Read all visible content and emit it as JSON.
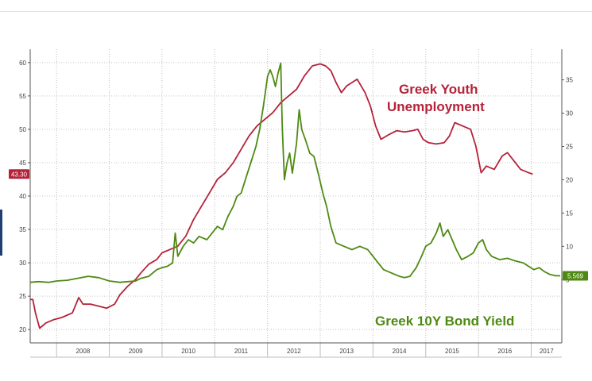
{
  "chart_data": {
    "type": "line",
    "title": "",
    "xlabel": "",
    "ylabel": "",
    "x_tick_labels": [
      "2008",
      "2009",
      "2010",
      "2011",
      "2012",
      "2013",
      "2014",
      "2015",
      "2016",
      "2017"
    ],
    "x_range": [
      2007.5,
      2017.58
    ],
    "y_left": {
      "range": [
        18,
        62
      ],
      "ticks": [
        20,
        25,
        30,
        35,
        40,
        45,
        50,
        55,
        60
      ]
    },
    "y_right": {
      "range": [
        -4.5,
        39.6
      ],
      "ticks": [
        5,
        10,
        15,
        20,
        25,
        30,
        35
      ]
    },
    "grid": true,
    "series": [
      {
        "name": "Greek Youth Unemployment",
        "axis": "left",
        "color": "#b5223a",
        "last_value_label": "43.30",
        "points": [
          [
            2007.5,
            24.5
          ],
          [
            2007.55,
            24.5
          ],
          [
            2007.6,
            22.5
          ],
          [
            2007.68,
            20.2
          ],
          [
            2007.8,
            21
          ],
          [
            2007.95,
            21.5
          ],
          [
            2008.1,
            21.8
          ],
          [
            2008.3,
            22.5
          ],
          [
            2008.42,
            24.8
          ],
          [
            2008.5,
            23.8
          ],
          [
            2008.65,
            23.8
          ],
          [
            2008.8,
            23.5
          ],
          [
            2008.95,
            23.2
          ],
          [
            2009.1,
            23.8
          ],
          [
            2009.2,
            25.2
          ],
          [
            2009.35,
            26.5
          ],
          [
            2009.5,
            27.5
          ],
          [
            2009.6,
            28.5
          ],
          [
            2009.75,
            29.8
          ],
          [
            2009.9,
            30.5
          ],
          [
            2010.0,
            31.5
          ],
          [
            2010.15,
            32.0
          ],
          [
            2010.3,
            32.5
          ],
          [
            2010.45,
            34.0
          ],
          [
            2010.6,
            36.5
          ],
          [
            2010.75,
            38.5
          ],
          [
            2010.9,
            40.5
          ],
          [
            2011.05,
            42.5
          ],
          [
            2011.2,
            43.5
          ],
          [
            2011.35,
            45.0
          ],
          [
            2011.5,
            47.0
          ],
          [
            2011.65,
            49.0
          ],
          [
            2011.8,
            50.5
          ],
          [
            2011.95,
            51.5
          ],
          [
            2012.1,
            52.5
          ],
          [
            2012.25,
            54.0
          ],
          [
            2012.4,
            55.0
          ],
          [
            2012.55,
            56.0
          ],
          [
            2012.7,
            58.0
          ],
          [
            2012.85,
            59.5
          ],
          [
            2013.0,
            59.8
          ],
          [
            2013.1,
            59.5
          ],
          [
            2013.2,
            58.8
          ],
          [
            2013.3,
            57.0
          ],
          [
            2013.4,
            55.5
          ],
          [
            2013.5,
            56.5
          ],
          [
            2013.6,
            57.0
          ],
          [
            2013.7,
            57.5
          ],
          [
            2013.85,
            55.5
          ],
          [
            2013.95,
            53.5
          ],
          [
            2014.05,
            50.5
          ],
          [
            2014.15,
            48.5
          ],
          [
            2014.3,
            49.2
          ],
          [
            2014.45,
            49.8
          ],
          [
            2014.6,
            49.6
          ],
          [
            2014.75,
            49.8
          ],
          [
            2014.85,
            50.0
          ],
          [
            2014.95,
            48.5
          ],
          [
            2015.05,
            48.0
          ],
          [
            2015.2,
            47.8
          ],
          [
            2015.35,
            48.0
          ],
          [
            2015.45,
            49.0
          ],
          [
            2015.55,
            51.0
          ],
          [
            2015.7,
            50.5
          ],
          [
            2015.85,
            50.0
          ],
          [
            2015.95,
            47.5
          ],
          [
            2016.05,
            43.5
          ],
          [
            2016.15,
            44.5
          ],
          [
            2016.3,
            44.0
          ],
          [
            2016.45,
            46.0
          ],
          [
            2016.55,
            46.5
          ],
          [
            2016.65,
            45.5
          ],
          [
            2016.8,
            44.0
          ],
          [
            2016.95,
            43.5
          ],
          [
            2017.03,
            43.3
          ]
        ]
      },
      {
        "name": "Greek 10Y Bond Yield",
        "axis": "right",
        "color": "#4e8a12",
        "last_value_label": "5.569",
        "points": [
          [
            2007.5,
            4.6
          ],
          [
            2007.65,
            4.7
          ],
          [
            2007.85,
            4.6
          ],
          [
            2008.0,
            4.8
          ],
          [
            2008.2,
            4.9
          ],
          [
            2008.4,
            5.2
          ],
          [
            2008.6,
            5.5
          ],
          [
            2008.8,
            5.3
          ],
          [
            2009.0,
            4.8
          ],
          [
            2009.2,
            4.6
          ],
          [
            2009.35,
            4.7
          ],
          [
            2009.5,
            4.8
          ],
          [
            2009.6,
            5.2
          ],
          [
            2009.75,
            5.5
          ],
          [
            2009.9,
            6.5
          ],
          [
            2010.0,
            6.8
          ],
          [
            2010.1,
            7.0
          ],
          [
            2010.2,
            7.5
          ],
          [
            2010.25,
            12.0
          ],
          [
            2010.3,
            8.5
          ],
          [
            2010.4,
            10.0
          ],
          [
            2010.5,
            11.0
          ],
          [
            2010.6,
            10.5
          ],
          [
            2010.7,
            11.5
          ],
          [
            2010.85,
            11.0
          ],
          [
            2010.95,
            12.0
          ],
          [
            2011.05,
            13.0
          ],
          [
            2011.15,
            12.5
          ],
          [
            2011.25,
            14.5
          ],
          [
            2011.35,
            16.0
          ],
          [
            2011.42,
            17.5
          ],
          [
            2011.5,
            18.0
          ],
          [
            2011.6,
            20.5
          ],
          [
            2011.7,
            23.0
          ],
          [
            2011.78,
            25.0
          ],
          [
            2011.85,
            27.5
          ],
          [
            2011.92,
            31.0
          ],
          [
            2012.0,
            35.5
          ],
          [
            2012.05,
            36.5
          ],
          [
            2012.1,
            35.5
          ],
          [
            2012.15,
            34.0
          ],
          [
            2012.2,
            36.0
          ],
          [
            2012.25,
            37.5
          ],
          [
            2012.28,
            28.0
          ],
          [
            2012.32,
            20.0
          ],
          [
            2012.37,
            22.5
          ],
          [
            2012.42,
            24.0
          ],
          [
            2012.47,
            21.0
          ],
          [
            2012.55,
            25.5
          ],
          [
            2012.6,
            30.5
          ],
          [
            2012.65,
            27.5
          ],
          [
            2012.72,
            26.0
          ],
          [
            2012.8,
            24.0
          ],
          [
            2012.88,
            23.5
          ],
          [
            2012.96,
            21.0
          ],
          [
            2013.05,
            18.0
          ],
          [
            2013.12,
            16.0
          ],
          [
            2013.2,
            13.0
          ],
          [
            2013.3,
            10.5
          ],
          [
            2013.45,
            10.0
          ],
          [
            2013.6,
            9.5
          ],
          [
            2013.75,
            10.0
          ],
          [
            2013.9,
            9.5
          ],
          [
            2014.0,
            8.5
          ],
          [
            2014.1,
            7.5
          ],
          [
            2014.2,
            6.5
          ],
          [
            2014.35,
            6.0
          ],
          [
            2014.5,
            5.5
          ],
          [
            2014.6,
            5.3
          ],
          [
            2014.7,
            5.5
          ],
          [
            2014.82,
            6.8
          ],
          [
            2014.92,
            8.5
          ],
          [
            2015.0,
            10.0
          ],
          [
            2015.1,
            10.5
          ],
          [
            2015.2,
            12.0
          ],
          [
            2015.27,
            13.5
          ],
          [
            2015.33,
            11.5
          ],
          [
            2015.42,
            12.5
          ],
          [
            2015.5,
            11.0
          ],
          [
            2015.58,
            9.5
          ],
          [
            2015.68,
            8.0
          ],
          [
            2015.8,
            8.5
          ],
          [
            2015.9,
            9.0
          ],
          [
            2016.0,
            10.5
          ],
          [
            2016.08,
            11.0
          ],
          [
            2016.15,
            9.5
          ],
          [
            2016.25,
            8.5
          ],
          [
            2016.4,
            8.0
          ],
          [
            2016.55,
            8.2
          ],
          [
            2016.7,
            7.8
          ],
          [
            2016.85,
            7.5
          ],
          [
            2016.95,
            7.0
          ],
          [
            2017.05,
            6.5
          ],
          [
            2017.15,
            6.8
          ],
          [
            2017.25,
            6.2
          ],
          [
            2017.35,
            5.8
          ],
          [
            2017.45,
            5.6
          ],
          [
            2017.55,
            5.57
          ]
        ]
      }
    ]
  },
  "annotations": {
    "youth_line1": "Greek Youth",
    "youth_line2": "Unemployment",
    "bond": "Greek 10Y Bond Yield"
  }
}
